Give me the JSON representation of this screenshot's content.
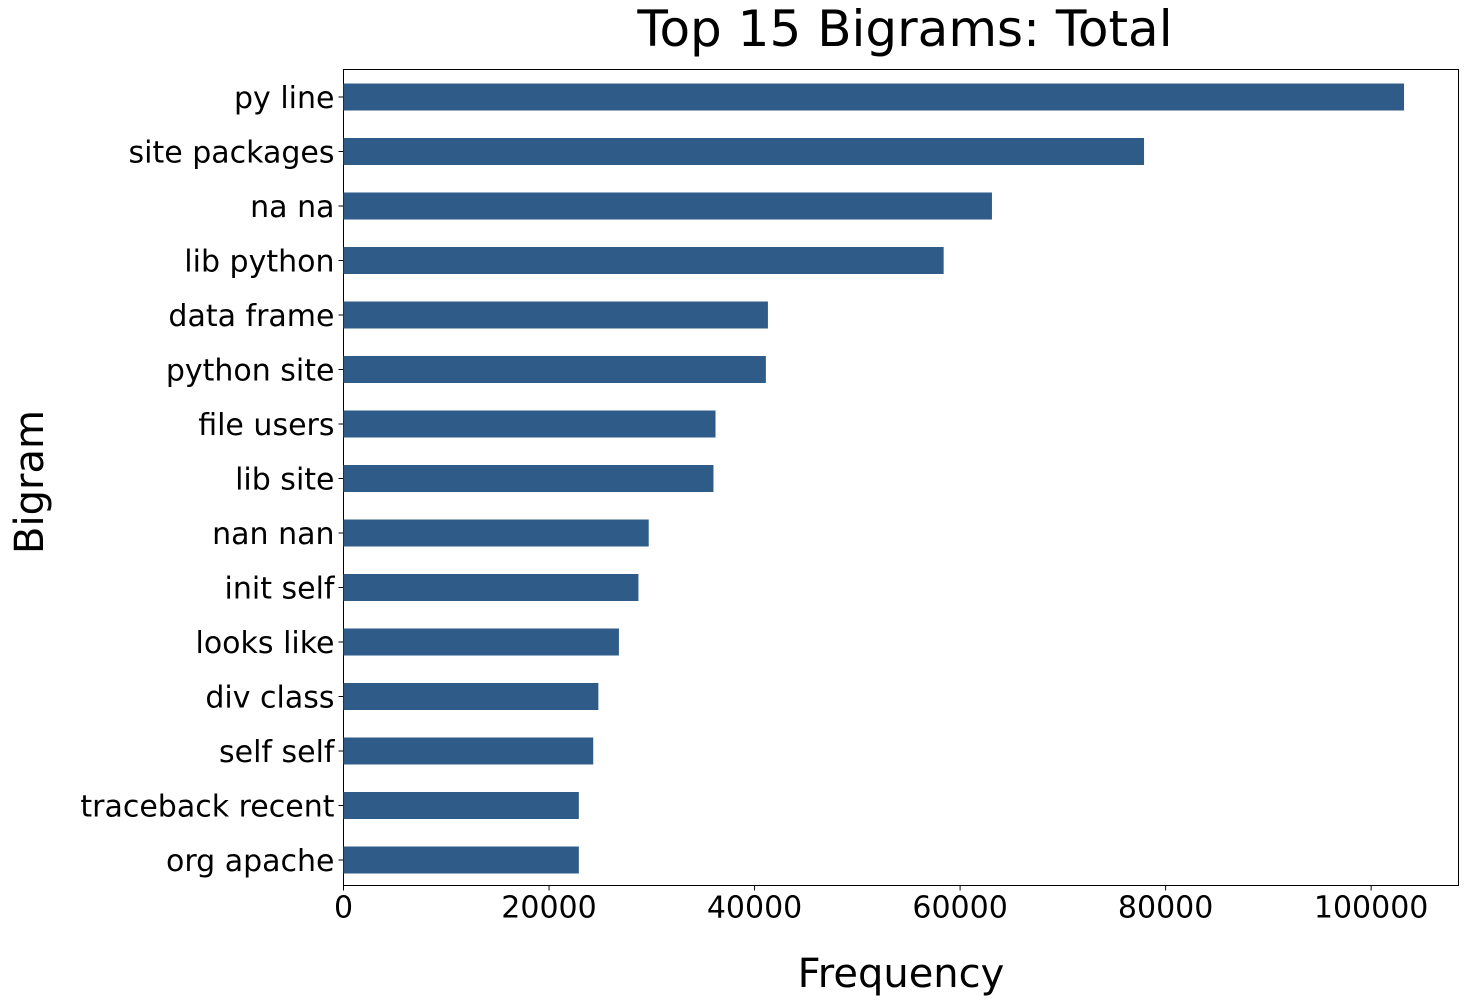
{
  "chart_data": {
    "type": "bar",
    "orientation": "horizontal",
    "title": "Top 15 Bigrams: Total",
    "xlabel": "Frequency",
    "ylabel": "Bigram",
    "categories": [
      "py line",
      "site packages",
      "na na",
      "lib python",
      "data frame",
      "python site",
      "file users",
      "lib site",
      "nan nan",
      "init self",
      "looks like",
      "div class",
      "self self",
      "traceback recent",
      "org apache"
    ],
    "values": [
      103200,
      77900,
      63100,
      58400,
      41300,
      41100,
      36200,
      36000,
      29700,
      28700,
      26800,
      24800,
      24300,
      22900,
      22900
    ],
    "xlim": [
      0,
      108500
    ],
    "xticks": [
      0,
      20000,
      40000,
      60000,
      80000,
      100000
    ],
    "xtick_labels": [
      "0",
      "20000",
      "40000",
      "60000",
      "80000",
      "100000"
    ],
    "bar_color": "#2e5b88",
    "grid": false,
    "legend": "none"
  }
}
